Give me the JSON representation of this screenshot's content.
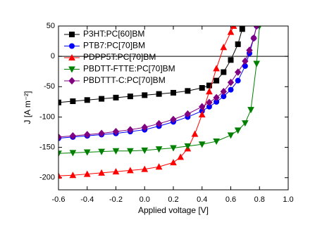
{
  "chart_data": {
    "type": "line",
    "xlabel": "Applied voltage [V]",
    "ylabel": "J [A m⁻²]",
    "xlim": [
      -0.6,
      1.0
    ],
    "ylim": [
      -220,
      50
    ],
    "xticks": [
      -0.6,
      -0.4,
      -0.2,
      {
        "value": 0,
        "label": "0.0"
      },
      0.2,
      0.4,
      0.6,
      0.8,
      {
        "value": 1,
        "label": "1.0"
      }
    ],
    "yticks": [
      50,
      0,
      -50,
      -100,
      -150,
      -200
    ],
    "zero_line": true,
    "legend": "upper-left",
    "series": [
      {
        "name": "P3HT:PC[60]BM",
        "color": "#000000",
        "marker": "square",
        "x": [
          -0.6,
          -0.5,
          -0.4,
          -0.3,
          -0.2,
          -0.1,
          0,
          0.1,
          0.2,
          0.3,
          0.4,
          0.45,
          0.5,
          0.55,
          0.6,
          0.65,
          0.68
        ],
        "values": [
          -76,
          -74,
          -72,
          -70,
          -68,
          -66,
          -64,
          -62,
          -60,
          -57,
          -52,
          -48,
          -40,
          -26,
          -6,
          20,
          45
        ]
      },
      {
        "name": "PTB7:PC[70]BM",
        "color": "#0000ff",
        "marker": "circle",
        "x": [
          -0.6,
          -0.5,
          -0.4,
          -0.3,
          -0.2,
          -0.1,
          0,
          0.1,
          0.2,
          0.3,
          0.4,
          0.45,
          0.5,
          0.55,
          0.6,
          0.65,
          0.7,
          0.73,
          0.76,
          0.78
        ],
        "values": [
          -135,
          -133,
          -131,
          -129,
          -127,
          -124,
          -121,
          -115,
          -108,
          -100,
          -90,
          -83,
          -75,
          -66,
          -55,
          -40,
          -16,
          5,
          30,
          50
        ]
      },
      {
        "name": "PDPP5T:PC[70]BM",
        "color": "#ff0000",
        "marker": "triangle-up",
        "x": [
          -0.6,
          -0.5,
          -0.4,
          -0.3,
          -0.2,
          -0.1,
          0,
          0.1,
          0.2,
          0.25,
          0.3,
          0.35,
          0.4,
          0.45,
          0.5,
          0.55,
          0.6,
          0.62
        ],
        "values": [
          -197,
          -196,
          -194,
          -192,
          -190,
          -188,
          -186,
          -182,
          -175,
          -166,
          -152,
          -128,
          -96,
          -58,
          -20,
          15,
          40,
          50
        ]
      },
      {
        "name": "PBDTT-FTTE:PC[70]BM",
        "color": "#008000",
        "marker": "triangle-down",
        "x": [
          -0.6,
          -0.5,
          -0.4,
          -0.3,
          -0.2,
          -0.1,
          0,
          0.1,
          0.2,
          0.3,
          0.4,
          0.5,
          0.6,
          0.65,
          0.7,
          0.74,
          0.78,
          0.8
        ],
        "values": [
          -160,
          -159,
          -158,
          -157,
          -156,
          -156,
          -155,
          -153,
          -151,
          -148,
          -145,
          -140,
          -130,
          -122,
          -110,
          -88,
          -12,
          50
        ]
      },
      {
        "name": "PBDTTT-C:PC[70]BM",
        "color": "#800080",
        "marker": "diamond",
        "x": [
          -0.6,
          -0.5,
          -0.4,
          -0.3,
          -0.2,
          -0.1,
          0,
          0.1,
          0.2,
          0.3,
          0.4,
          0.45,
          0.5,
          0.55,
          0.6,
          0.65,
          0.7,
          0.73,
          0.76,
          0.78
        ],
        "values": [
          -133,
          -131,
          -129,
          -127,
          -124,
          -121,
          -117,
          -111,
          -104,
          -95,
          -83,
          -76,
          -68,
          -58,
          -43,
          -26,
          -8,
          10,
          30,
          50
        ]
      }
    ]
  }
}
